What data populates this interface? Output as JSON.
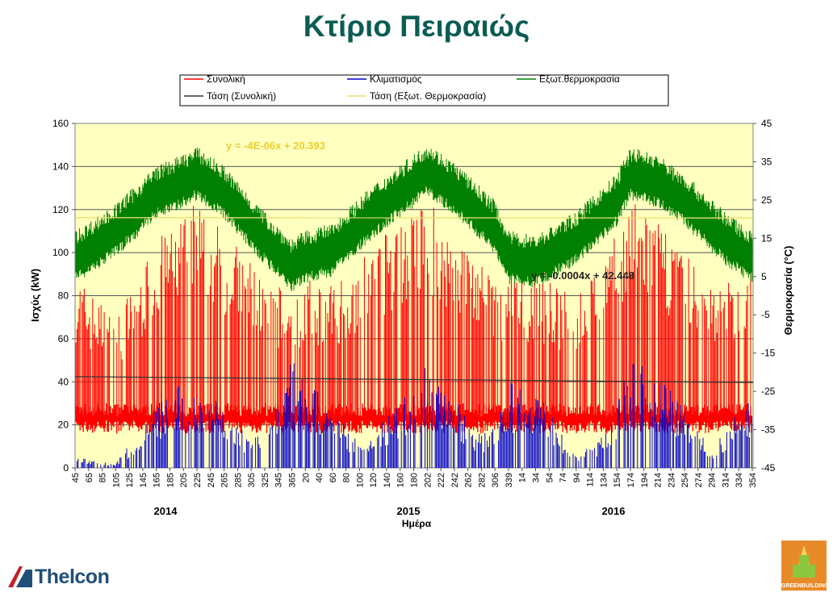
{
  "page": {
    "title": "Κτίριο Πειραιώς"
  },
  "chart_data": {
    "type": "line",
    "ylabel": "Ισχύς (kW)",
    "y2label": "Θερμοκρασία (°C)",
    "xlabel": "Ημέρα",
    "ylim": [
      0,
      160
    ],
    "y2lim": [
      -45,
      45
    ],
    "yticks": [
      "0",
      "20",
      "40",
      "60",
      "80",
      "100",
      "120",
      "140",
      "160"
    ],
    "y2ticks": [
      "-45",
      "-35",
      "-25",
      "-15",
      "-5",
      "5",
      "15",
      "25",
      "35",
      "45"
    ],
    "xticks": [
      "45",
      "65",
      "85",
      "105",
      "125",
      "145",
      "165",
      "185",
      "205",
      "225",
      "245",
      "265",
      "285",
      "305",
      "325",
      "345",
      "365",
      "20",
      "40",
      "60",
      "80",
      "100",
      "120",
      "140",
      "160",
      "180",
      "202",
      "222",
      "242",
      "262",
      "282",
      "306",
      "339",
      "14",
      "34",
      "54",
      "74",
      "94",
      "114",
      "134",
      "154",
      "174",
      "194",
      "214",
      "234",
      "254",
      "274",
      "294",
      "314",
      "334",
      "354"
    ],
    "years": [
      "2014",
      "2015",
      "2016"
    ],
    "legend": [
      "Συνολική",
      "Κλιματισμός",
      "Εξωτ.θερμοκρασία",
      "Τάση (Συνολική)",
      "Τάση (Εξωτ. Θερμοκρασία)"
    ],
    "legend_position": "top",
    "annotations": [
      "y = -4E-06x + 20.393",
      "y = -0.0004x + 42.448"
    ],
    "grid": true,
    "colors": {
      "total": "#ff0000",
      "hvac": "#0000cc",
      "temperature": "#008000",
      "trend_total": "#333333",
      "trend_temp": "#e8e070",
      "plot_bg": "#ffffc0"
    },
    "series": [
      {
        "name": "Συνολική",
        "axis": "left",
        "x": [
          45,
          105,
          165,
          205,
          225,
          265,
          325,
          365,
          20,
          60,
          120,
          180,
          202,
          242,
          306,
          339,
          34,
          94,
          154,
          174,
          214,
          254,
          314,
          354
        ],
        "y": [
          90,
          70,
          105,
          120,
          125,
          110,
          90,
          80,
          88,
          85,
          105,
          120,
          125,
          110,
          90,
          90,
          90,
          80,
          110,
          125,
          115,
          100,
          85,
          95
        ]
      },
      {
        "name": "Κλιματισμός",
        "axis": "left",
        "x": [
          45,
          105,
          145,
          165,
          205,
          245,
          285,
          325,
          365,
          40,
          100,
          160,
          202,
          242,
          282,
          339,
          34,
          94,
          134,
          174,
          214,
          254,
          294,
          354
        ],
        "y": [
          5,
          2,
          20,
          30,
          40,
          38,
          18,
          15,
          50,
          35,
          12,
          30,
          50,
          35,
          15,
          40,
          40,
          5,
          15,
          50,
          45,
          30,
          10,
          35
        ]
      },
      {
        "name": "Εξωτ.θερμοκρασία",
        "axis": "right",
        "x": [
          45,
          105,
          165,
          205,
          225,
          265,
          325,
          365,
          20,
          60,
          120,
          180,
          202,
          242,
          306,
          339,
          34,
          94,
          154,
          174,
          214,
          254,
          314,
          354
        ],
        "y": [
          10,
          17,
          27,
          30,
          32,
          27,
          15,
          8,
          10,
          12,
          22,
          30,
          33,
          28,
          18,
          10,
          9,
          15,
          25,
          32,
          30,
          25,
          15,
          10
        ]
      },
      {
        "name": "Τάση (Συνολική)",
        "axis": "left",
        "y_start": 42.4,
        "y_end": 39.7
      },
      {
        "name": "Τάση (Εξωτ. Θερμοκρασία)",
        "axis": "right",
        "y_start": 20.4,
        "y_end": 20.3
      }
    ]
  },
  "logos": {
    "left": "Thelcon",
    "right": "GREENBUILDING"
  }
}
